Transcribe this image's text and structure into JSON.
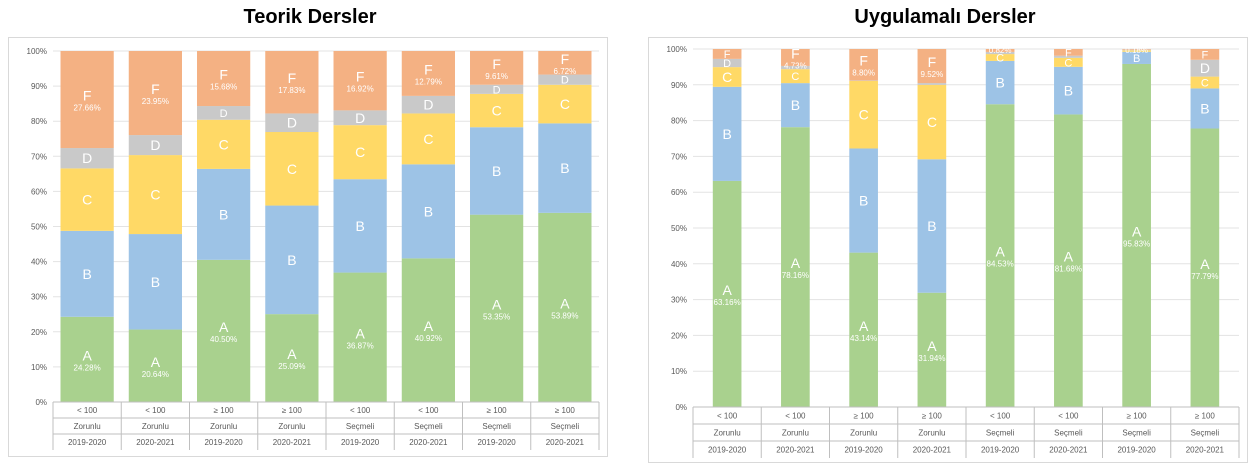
{
  "colors": {
    "A": "#a9d18e",
    "B": "#9dc3e6",
    "C": "#ffd966",
    "D": "#c9c9c9",
    "F": "#f4b183",
    "grid": "#e3e3e3",
    "axis_text": "#595959"
  },
  "chart_data": [
    {
      "type": "bar",
      "stacked": true,
      "title": "Teorik Dersler",
      "ylim": [
        0,
        100
      ],
      "yticks": [
        "0%",
        "10%",
        "20%",
        "30%",
        "40%",
        "50%",
        "60%",
        "70%",
        "80%",
        "90%",
        "100%"
      ],
      "grid": true,
      "category_levels": [
        [
          "< 100",
          "< 100",
          "≥ 100",
          "≥ 100",
          "< 100",
          "< 100",
          "≥ 100",
          "≥ 100"
        ],
        [
          "Zorunlu",
          "Zorunlu",
          "Zorunlu",
          "Zorunlu",
          "Seçmeli",
          "Seçmeli",
          "Seçmeli",
          "Seçmeli"
        ],
        [
          "2019-2020",
          "2020-2021",
          "2019-2020",
          "2020-2021",
          "2019-2020",
          "2020-2021",
          "2019-2020",
          "2020-2021"
        ]
      ],
      "series": [
        {
          "name": "A",
          "values": [
            24.28,
            20.64,
            40.5,
            25.09,
            36.87,
            40.92,
            53.35,
            53.89
          ],
          "labels": [
            "24.28%",
            "20.64%",
            "40.50%",
            "25.09%",
            "36.87%",
            "40.92%",
            "53.35%",
            "53.89%"
          ]
        },
        {
          "name": "B",
          "values": [
            24.5,
            27.2,
            25.9,
            31.0,
            26.6,
            26.8,
            24.9,
            25.5
          ],
          "labels": [
            "",
            "",
            "",
            "",
            "",
            "",
            "",
            ""
          ]
        },
        {
          "name": "C",
          "values": [
            17.8,
            22.5,
            14.0,
            21.0,
            15.4,
            14.5,
            9.5,
            11.0
          ],
          "labels": [
            "",
            "",
            "",
            "",
            "",
            "",
            "",
            ""
          ]
        },
        {
          "name": "D",
          "values": [
            5.8,
            5.7,
            3.9,
            5.3,
            4.2,
            5.0,
            2.6,
            2.9
          ],
          "labels": [
            "",
            "",
            "",
            "",
            "",
            "",
            "",
            ""
          ]
        },
        {
          "name": "F",
          "values": [
            27.66,
            23.95,
            15.68,
            17.83,
            16.92,
            12.79,
            9.61,
            6.72
          ],
          "labels": [
            "27.66%",
            "23.95%",
            "15.68%",
            "17.83%",
            "16.92%",
            "12.79%",
            "9.61%",
            "6.72%"
          ]
        }
      ]
    },
    {
      "type": "bar",
      "stacked": true,
      "title": "Uygulamalı Dersler",
      "ylim": [
        0,
        100
      ],
      "yticks": [
        "0%",
        "10%",
        "20%",
        "30%",
        "40%",
        "50%",
        "60%",
        "70%",
        "80%",
        "90%",
        "100%"
      ],
      "grid": true,
      "category_levels": [
        [
          "< 100",
          "< 100",
          "≥ 100",
          "≥ 100",
          "< 100",
          "< 100",
          "≥ 100",
          "≥ 100"
        ],
        [
          "Zorunlu",
          "Zorunlu",
          "Zorunlu",
          "Zorunlu",
          "Seçmeli",
          "Seçmeli",
          "Seçmeli",
          "Seçmeli"
        ],
        [
          "2019-2020",
          "2020-2021",
          "2019-2020",
          "2020-2021",
          "2019-2020",
          "2020-2021",
          "2019-2020",
          "2020-2021"
        ]
      ],
      "series": [
        {
          "name": "A",
          "values": [
            63.16,
            78.16,
            43.14,
            31.94,
            84.53,
            81.68,
            95.83,
            77.79
          ],
          "labels": [
            "63.16%",
            "78.16%",
            "43.14%",
            "31.94%",
            "84.53%",
            "81.68%",
            "95.83%",
            "77.79%"
          ]
        },
        {
          "name": "B",
          "values": [
            26.3,
            12.3,
            29.1,
            37.3,
            12.1,
            13.3,
            3.4,
            11.2
          ],
          "labels": [
            "",
            "",
            "",
            "",
            "",
            "",
            "",
            ""
          ]
        },
        {
          "name": "C",
          "values": [
            5.5,
            3.9,
            18.9,
            20.8,
            1.9,
            2.5,
            0.4,
            3.3
          ],
          "labels": [
            "",
            "",
            "",
            "",
            "",
            "",
            "",
            ""
          ]
        },
        {
          "name": "D",
          "values": [
            2.3,
            0.9,
            0.1,
            0.5,
            0.6,
            0.6,
            0.2,
            4.7
          ],
          "labels": [
            "",
            "",
            "",
            "",
            "",
            "",
            "",
            ""
          ]
        },
        {
          "name": "F",
          "values": [
            2.76,
            4.73,
            8.8,
            9.52,
            0.82,
            1.87,
            0.18,
            3.01
          ],
          "labels": [
            "2.76%",
            "4.73%",
            "8.80%",
            "9.52%",
            "0.82%",
            "1.87%",
            "0.18%",
            "3.01%"
          ]
        }
      ]
    }
  ]
}
